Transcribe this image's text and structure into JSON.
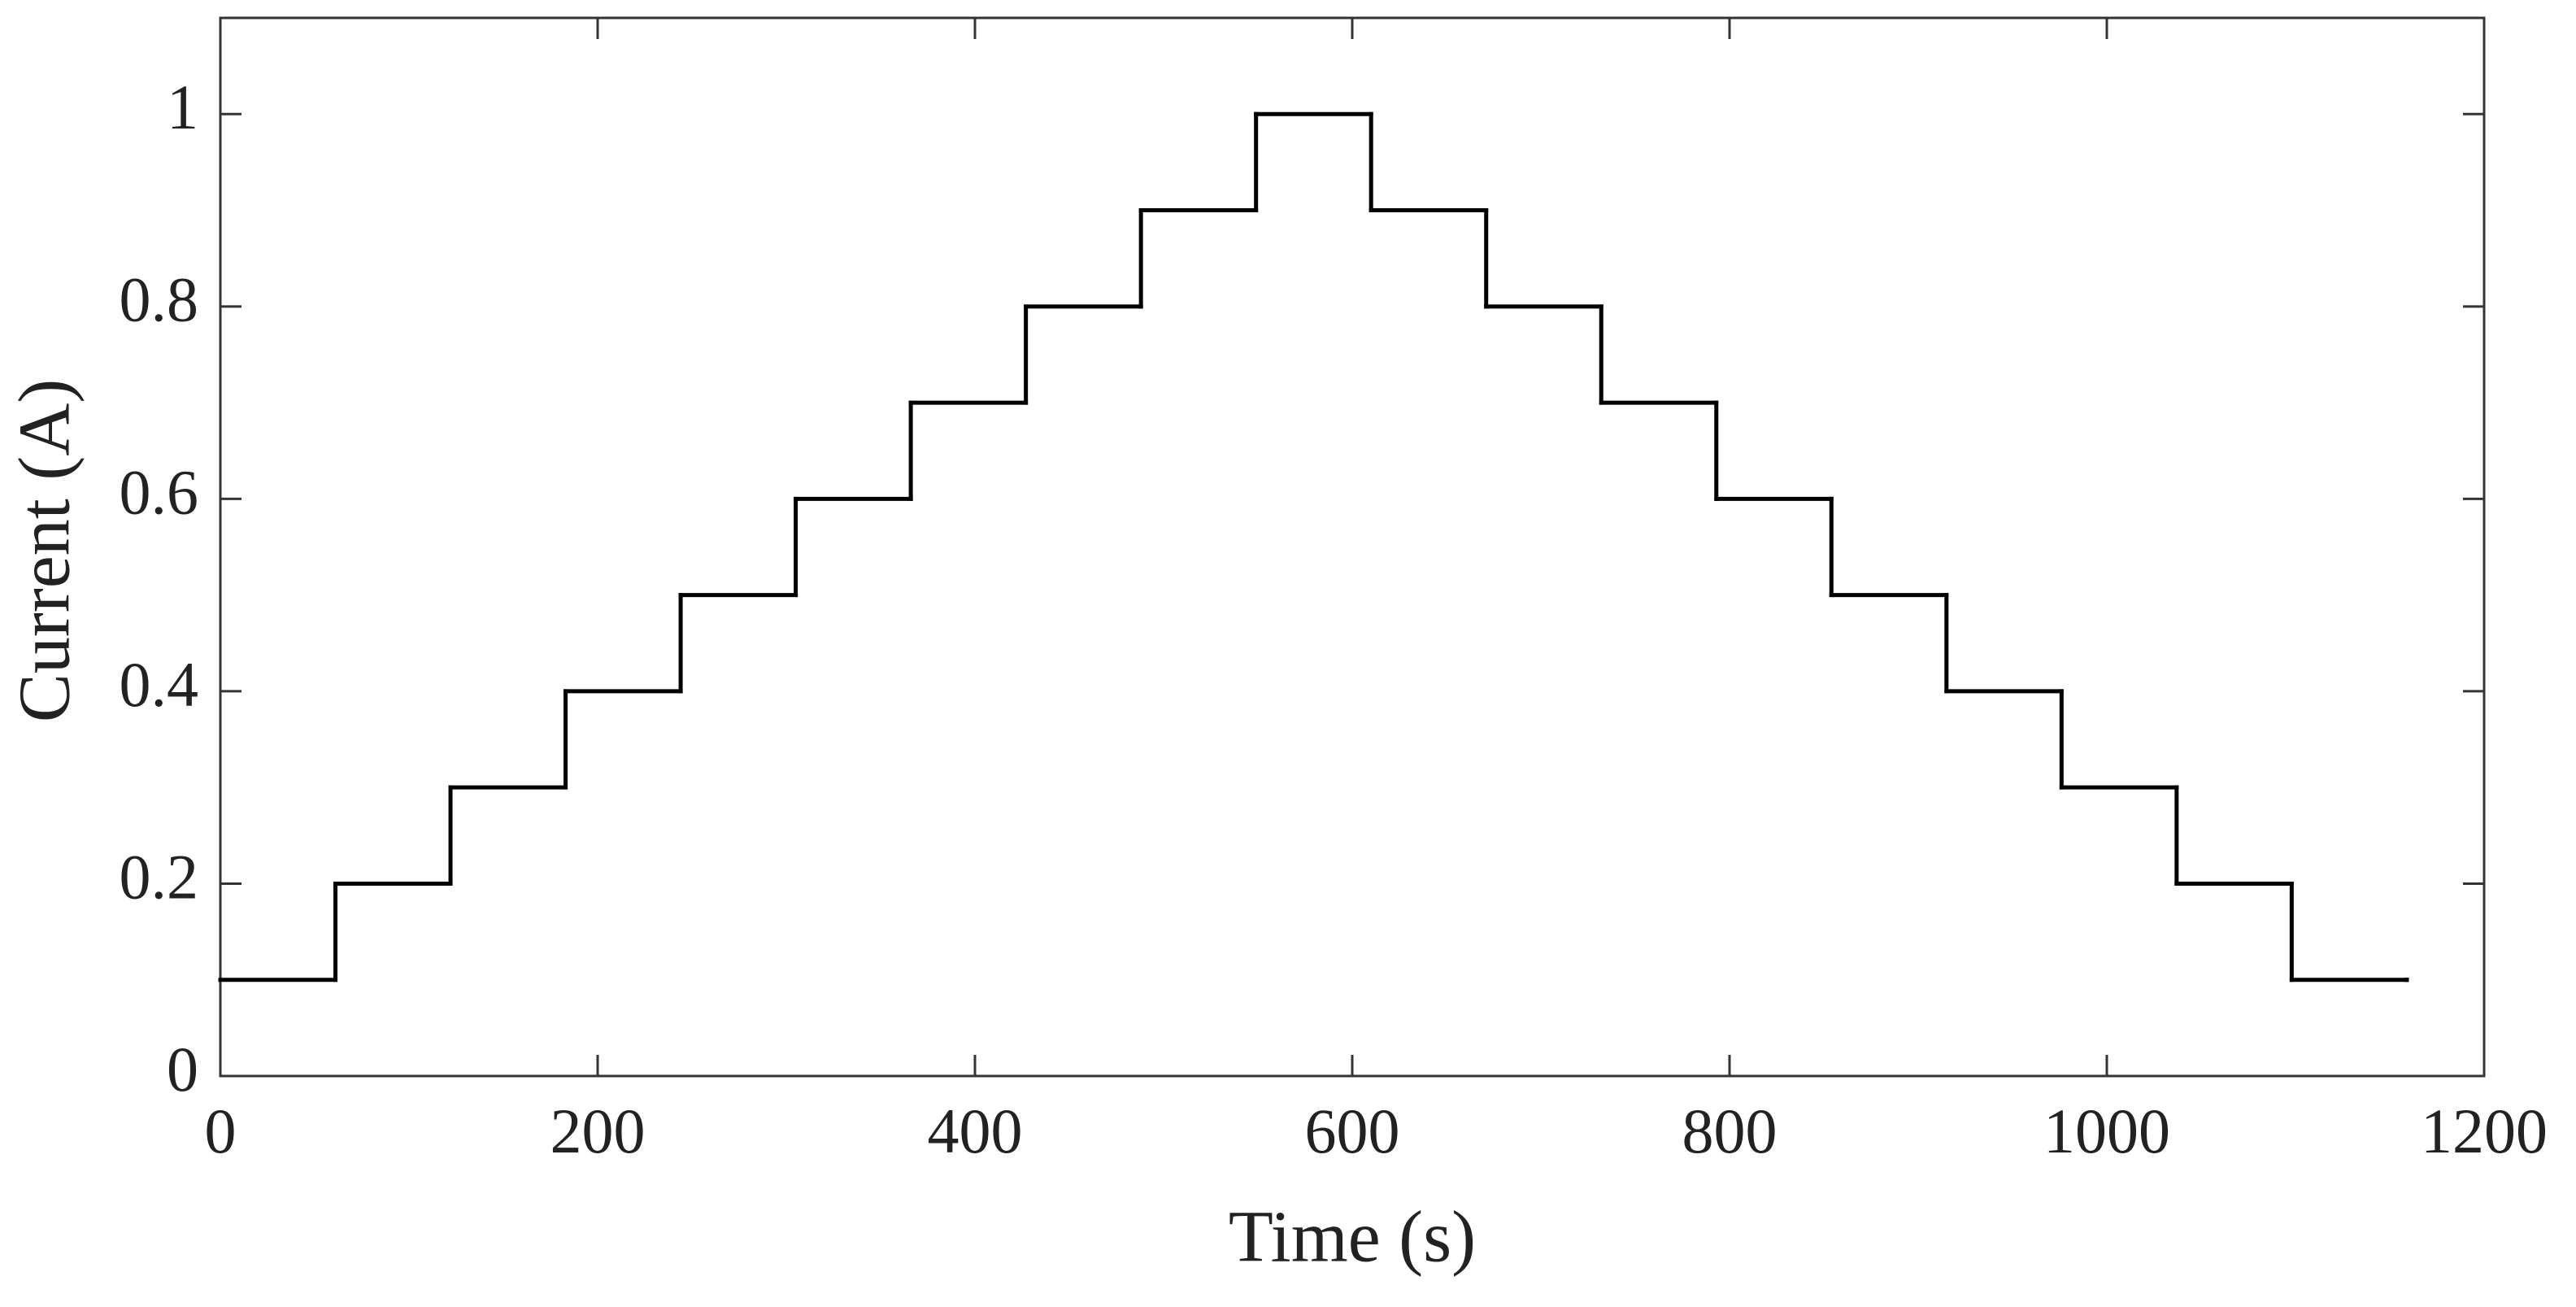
{
  "chart_data": {
    "type": "line",
    "step": "post",
    "x_label": "Time (s)",
    "y_label": "Current (A)",
    "x": [
      0,
      61,
      122,
      183,
      244,
      305,
      366,
      427,
      488,
      549,
      610,
      671,
      732,
      793,
      854,
      915,
      976,
      1037,
      1098,
      1159
    ],
    "values": [
      0.1,
      0.2,
      0.3,
      0.4,
      0.5,
      0.6,
      0.7,
      0.8,
      0.9,
      1.0,
      0.9,
      0.8,
      0.7,
      0.6,
      0.5,
      0.4,
      0.3,
      0.2,
      0.1,
      0.1
    ],
    "color": "#000000",
    "xlim": [
      0,
      1200
    ],
    "xticks": [
      0,
      200,
      400,
      600,
      800,
      1000,
      1200
    ],
    "ylim": [
      0,
      1.1
    ],
    "yticks": [
      0,
      0.2,
      0.4,
      0.6,
      0.8,
      1
    ]
  }
}
